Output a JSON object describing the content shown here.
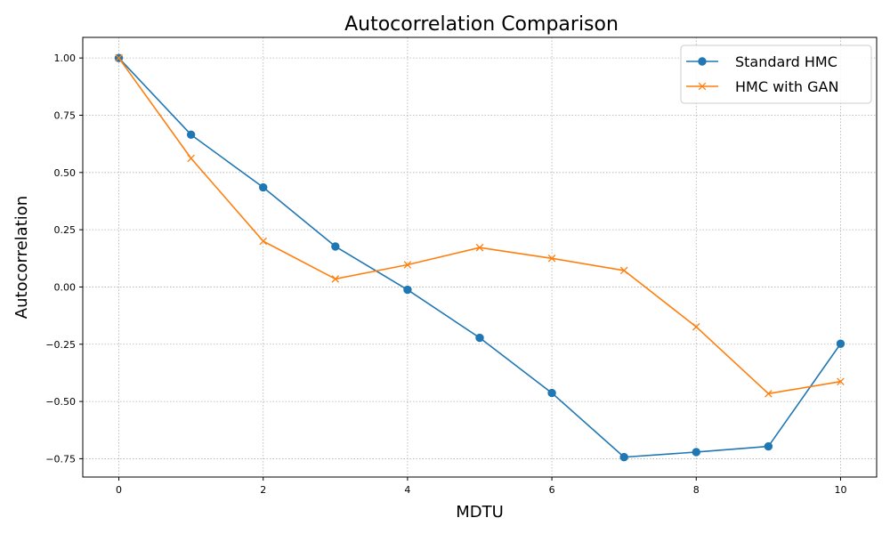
{
  "chart_data": {
    "type": "line",
    "title": "Autocorrelation Comparison",
    "xlabel": "MDTU",
    "ylabel": "Autocorrelation",
    "xlim": [
      -0.5,
      10.5
    ],
    "ylim": [
      -0.83,
      1.09
    ],
    "xticks": [
      0,
      2,
      4,
      6,
      8,
      10
    ],
    "xtick_labels": [
      "0",
      "2",
      "4",
      "6",
      "8",
      "10"
    ],
    "yticks": [
      -0.75,
      -0.5,
      -0.25,
      0.0,
      0.25,
      0.5,
      0.75,
      1.0
    ],
    "ytick_labels": [
      "−0.75",
      "−0.50",
      "−0.25",
      "0.00",
      "0.25",
      "0.50",
      "0.75",
      "1.00"
    ],
    "grid": true,
    "legend_position": "top-right",
    "x": [
      0,
      1,
      2,
      3,
      4,
      5,
      6,
      7,
      8,
      9,
      10
    ],
    "series": [
      {
        "name": "Standard HMC",
        "color": "#1f77b4",
        "marker": "circle",
        "values": [
          1.0,
          0.665,
          0.435,
          0.177,
          -0.012,
          -0.222,
          -0.463,
          -0.743,
          -0.721,
          -0.696,
          -0.248
        ]
      },
      {
        "name": "HMC with GAN",
        "color": "#ff7f0e",
        "marker": "x",
        "values": [
          1.0,
          0.562,
          0.2,
          0.035,
          0.097,
          0.172,
          0.125,
          0.072,
          -0.174,
          -0.466,
          -0.413
        ]
      }
    ]
  }
}
